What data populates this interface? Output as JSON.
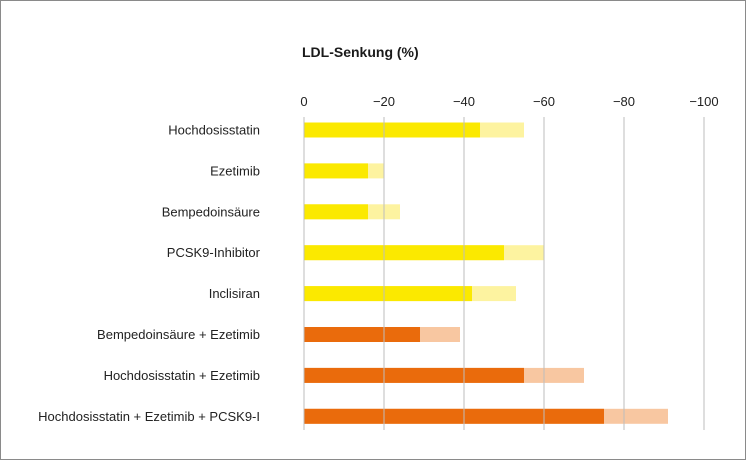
{
  "chart_data": {
    "type": "bar",
    "orientation": "horizontal",
    "title": "LDL-Senkung (%)",
    "xlim": [
      0,
      -100
    ],
    "x_ticks": [
      0,
      -20,
      -40,
      -60,
      -80,
      -100
    ],
    "x_tick_labels": [
      "0",
      "−20",
      "−40",
      "−60",
      "−80",
      "−100"
    ],
    "grid": true,
    "categories": [
      "Hochdosisstatin",
      "Ezetimib",
      "Bempedoinsäure",
      "PCSK9-Inhibitor",
      "Inclisiran",
      "Bempedoinsäure + Ezetimib",
      "Hochdosisstatin + Ezetimib",
      "Hochdosisstatin + Ezetimib + PCSK9-I"
    ],
    "series": [
      {
        "values": [
          -44,
          -16,
          -16,
          -50,
          -42,
          -29,
          -55,
          -75
        ]
      },
      {
        "values": [
          -55,
          -20,
          -24,
          -60,
          -53,
          -39,
          -70,
          -91
        ]
      }
    ],
    "colors": {
      "mono_low": "#fbe900",
      "mono_high": "#fdf3a0",
      "combo_low": "#ea6b0c",
      "combo_high": "#f8c7a1",
      "grid": "#bdbdbd"
    },
    "combination_from_index": 5
  }
}
